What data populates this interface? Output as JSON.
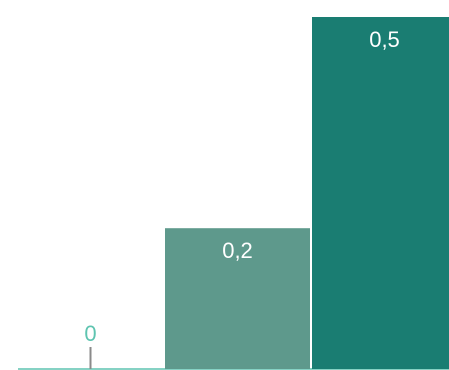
{
  "chart_data": {
    "type": "bar",
    "categories": [
      "",
      "",
      ""
    ],
    "values": [
      0,
      0.2,
      0.5
    ],
    "value_labels": [
      "0",
      "0,2",
      "0,5"
    ],
    "ylim": [
      0,
      0.5
    ],
    "grid": false,
    "legend": "none",
    "bar_colors": [
      "#4fb8a3",
      "#5e998c",
      "#1a7d72"
    ],
    "label_colors": [
      "#5ec4b0",
      "#ffffff",
      "#ffffff"
    ],
    "zero_marker_color": "#8a8a8a",
    "baseline_color": "#5ec4b0"
  }
}
